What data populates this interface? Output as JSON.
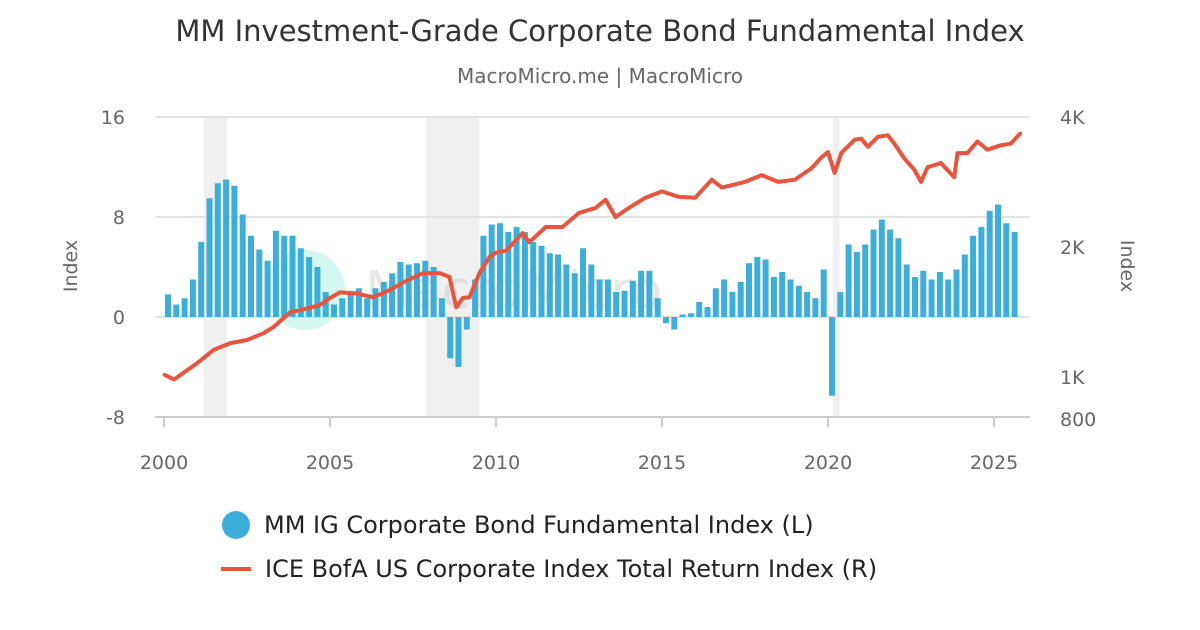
{
  "chart_data": {
    "type": "bar+line",
    "title": "MM Investment-Grade Corporate Bond Fundamental Index",
    "subtitle": "MacroMicro.me | MacroMicro",
    "watermark": "MacroMicro",
    "xlim": [
      2000,
      2026
    ],
    "x_ticks": [
      "2000",
      "2005",
      "2010",
      "2015",
      "2020",
      "2025"
    ],
    "y_left": {
      "label": "Index",
      "ylim": [
        -8,
        16
      ],
      "ticks": [
        "16",
        "8",
        "0",
        "-8"
      ],
      "tick_values": [
        16,
        8,
        0,
        -8
      ]
    },
    "y_right": {
      "label": "Index",
      "scale": "log",
      "ylim": [
        808,
        4000
      ],
      "ticks": [
        "4K",
        "2K",
        "1K",
        "800"
      ],
      "tick_values": [
        4000,
        2000,
        1000,
        800
      ]
    },
    "grid": "horizontal",
    "legend_position": "bottom",
    "recession_shading": [
      [
        2001.2,
        2001.9
      ],
      [
        2007.9,
        2009.5
      ],
      [
        2020.15,
        2020.35
      ]
    ],
    "series": [
      {
        "name": "MM IG Corporate Bond Fundamental Index (L)",
        "type": "bar",
        "axis": "left",
        "color": "#3daed9",
        "frequency": "quarterly",
        "start": 2000.0,
        "values": [
          1.8,
          1.0,
          1.5,
          3.0,
          6.0,
          9.5,
          10.7,
          11.0,
          10.5,
          8.2,
          6.5,
          5.4,
          4.5,
          6.9,
          6.5,
          6.5,
          5.5,
          4.8,
          4.0,
          2.0,
          1.0,
          1.5,
          2.0,
          2.3,
          1.5,
          2.3,
          2.8,
          3.5,
          4.4,
          4.2,
          4.3,
          4.5,
          4.0,
          1.5,
          -3.3,
          -4.0,
          -1.0,
          3.0,
          6.5,
          7.4,
          7.5,
          6.8,
          7.2,
          6.8,
          6.0,
          5.7,
          5.1,
          5.0,
          4.2,
          3.5,
          5.5,
          4.2,
          3.0,
          3.0,
          2.0,
          2.1,
          2.9,
          3.7,
          3.7,
          1.5,
          -0.5,
          -1.0,
          0.2,
          0.3,
          1.2,
          0.8,
          2.3,
          3.0,
          2.0,
          2.8,
          4.3,
          4.8,
          4.6,
          3.2,
          3.6,
          3.0,
          2.5,
          2.0,
          1.5,
          3.8,
          -6.3,
          2.0,
          5.8,
          5.2,
          5.8,
          7.0,
          7.8,
          7.0,
          6.3,
          4.2,
          3.2,
          3.7,
          3.0,
          3.6,
          3.0,
          3.8,
          5.0,
          6.5,
          7.2,
          8.5,
          9.0,
          7.5,
          6.8
        ]
      },
      {
        "name": "ICE BofA US Corporate Index Total Return Index (R)",
        "type": "line",
        "axis": "right",
        "color": "#e8553e",
        "x": [
          2000.0,
          2000.3,
          2001.0,
          2001.5,
          2002.0,
          2002.5,
          2003.0,
          2003.3,
          2003.8,
          2004.2,
          2004.7,
          2005.0,
          2005.3,
          2005.8,
          2006.3,
          2006.8,
          2007.2,
          2007.8,
          2008.3,
          2008.6,
          2008.8,
          2009.0,
          2009.2,
          2009.5,
          2009.8,
          2010.0,
          2010.3,
          2010.8,
          2011.0,
          2011.5,
          2012.0,
          2012.5,
          2013.0,
          2013.3,
          2013.6,
          2014.0,
          2014.5,
          2015.0,
          2015.5,
          2016.0,
          2016.5,
          2016.8,
          2017.5,
          2018.0,
          2018.5,
          2019.0,
          2019.5,
          2019.8,
          2020.0,
          2020.2,
          2020.4,
          2020.8,
          2021.0,
          2021.2,
          2021.5,
          2021.8,
          2022.0,
          2022.3,
          2022.6,
          2022.8,
          2023.0,
          2023.4,
          2023.8,
          2023.9,
          2024.2,
          2024.5,
          2024.8,
          2025.2,
          2025.5,
          2025.8
        ],
        "values": [
          1013,
          987,
          1077,
          1156,
          1198,
          1218,
          1263,
          1306,
          1411,
          1434,
          1467,
          1524,
          1570,
          1562,
          1530,
          1590,
          1654,
          1740,
          1740,
          1704,
          1450,
          1524,
          1530,
          1740,
          1895,
          1940,
          1960,
          2154,
          2051,
          2225,
          2225,
          2399,
          2464,
          2574,
          2346,
          2464,
          2602,
          2690,
          2614,
          2602,
          2864,
          2745,
          2830,
          2935,
          2830,
          2864,
          3042,
          3225,
          3317,
          2967,
          3301,
          3542,
          3565,
          3412,
          3598,
          3630,
          3470,
          3205,
          3020,
          2830,
          3060,
          3130,
          2900,
          3300,
          3300,
          3510,
          3360,
          3440,
          3470,
          3670
        ]
      }
    ]
  }
}
